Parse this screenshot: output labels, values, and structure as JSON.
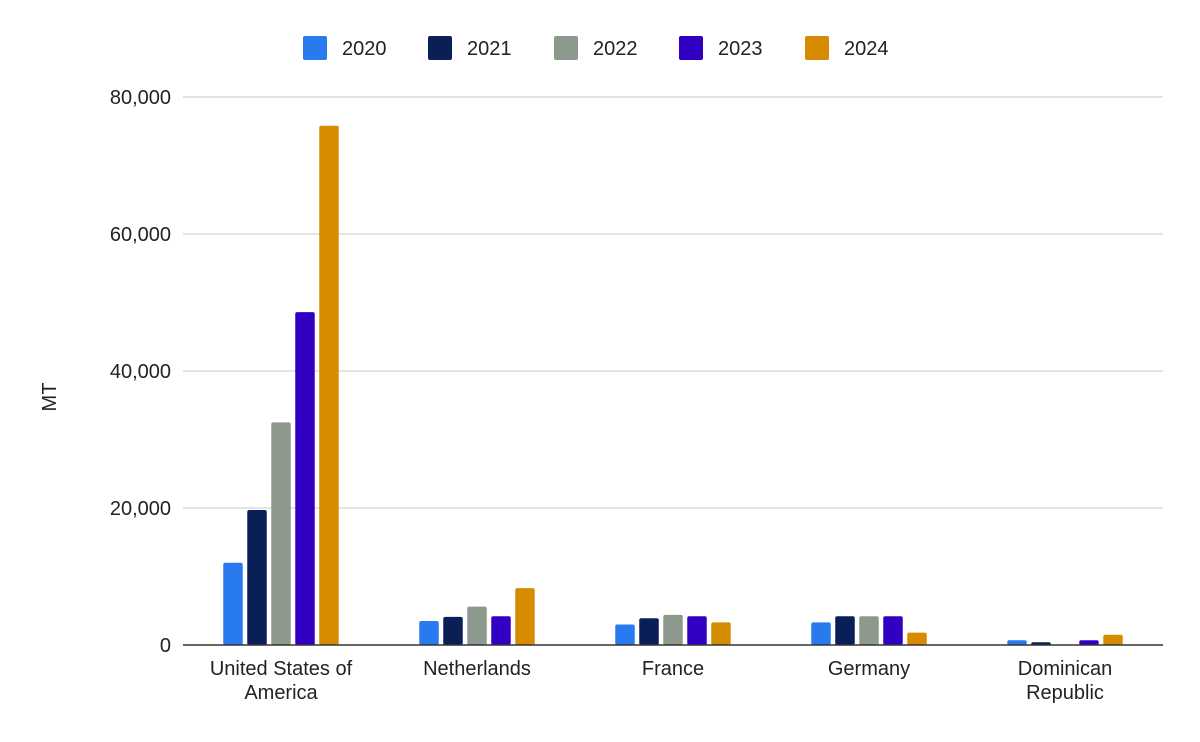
{
  "chart_data": {
    "type": "bar",
    "title": "",
    "xlabel": "",
    "ylabel": "MT",
    "ylim": [
      0,
      80000
    ],
    "yticks": [
      0,
      20000,
      40000,
      60000,
      80000
    ],
    "ytick_labels": [
      "0",
      "20,000",
      "40,000",
      "60,000",
      "80,000"
    ],
    "grid": true,
    "legend": "top-center",
    "categories": [
      [
        "United States of",
        "America"
      ],
      [
        "Netherlands"
      ],
      [
        "France"
      ],
      [
        "Germany"
      ],
      [
        "Dominican",
        "Republic"
      ]
    ],
    "series": [
      {
        "name": "2020",
        "color": "#2a7aef",
        "values": [
          12000,
          3500,
          3000,
          3300,
          700
        ]
      },
      {
        "name": "2021",
        "color": "#0a1f56",
        "values": [
          19700,
          4100,
          3900,
          4200,
          400
        ]
      },
      {
        "name": "2022",
        "color": "#8e998d",
        "values": [
          32500,
          5600,
          4400,
          4200,
          0
        ]
      },
      {
        "name": "2023",
        "color": "#3200c2",
        "values": [
          48600,
          4200,
          4200,
          4200,
          700
        ]
      },
      {
        "name": "2024",
        "color": "#d68c00",
        "values": [
          75800,
          8300,
          3300,
          1800,
          1500
        ]
      }
    ]
  }
}
